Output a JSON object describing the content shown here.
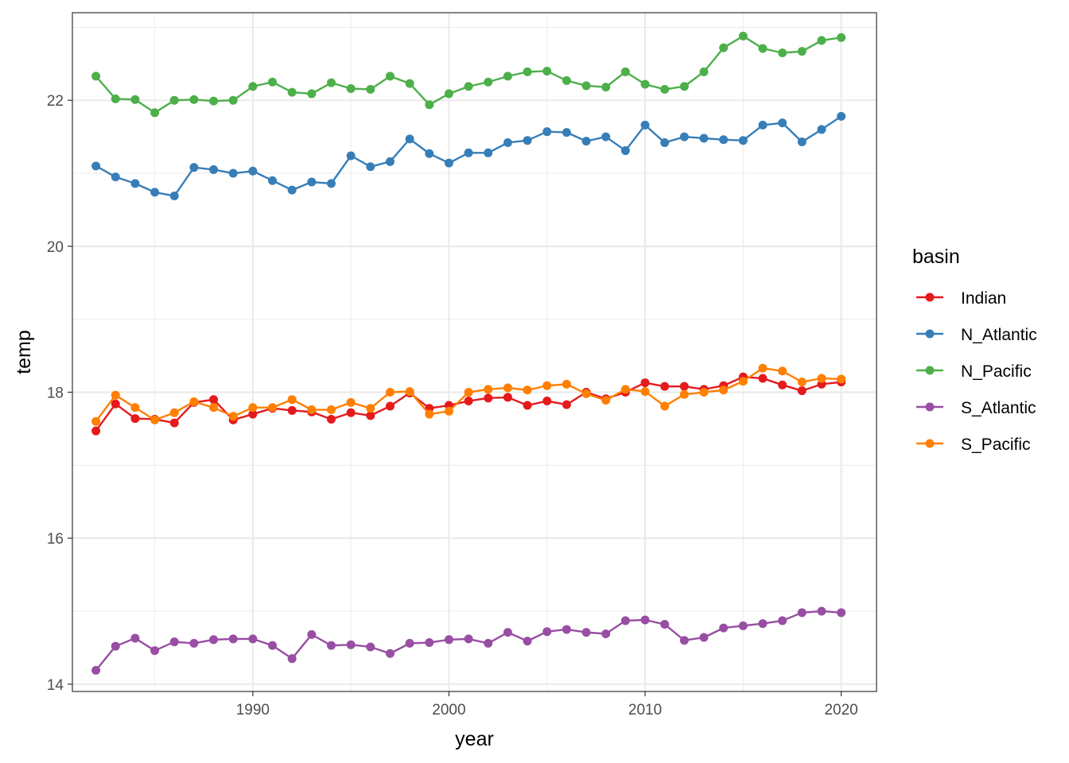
{
  "chart_data": {
    "type": "line",
    "title": "",
    "xlabel": "year",
    "ylabel": "temp",
    "xlim": [
      1980.8,
      2021.8
    ],
    "ylim": [
      13.9,
      23.2
    ],
    "x_ticks": [
      1990,
      2000,
      2010,
      2020
    ],
    "y_ticks": [
      14,
      16,
      18,
      20,
      22
    ],
    "grid": true,
    "legend_title": "basin",
    "legend_position": "right",
    "x": [
      1982,
      1983,
      1984,
      1985,
      1986,
      1987,
      1988,
      1989,
      1990,
      1991,
      1992,
      1993,
      1994,
      1995,
      1996,
      1997,
      1998,
      1999,
      2000,
      2001,
      2002,
      2003,
      2004,
      2005,
      2006,
      2007,
      2008,
      2009,
      2010,
      2011,
      2012,
      2013,
      2014,
      2015,
      2016,
      2017,
      2018,
      2019,
      2020
    ],
    "series": [
      {
        "name": "Indian",
        "color": "#e41a1c",
        "values": [
          17.47,
          17.84,
          17.64,
          17.63,
          17.58,
          17.86,
          17.9,
          17.62,
          17.7,
          17.78,
          17.75,
          17.73,
          17.63,
          17.72,
          17.68,
          17.81,
          17.99,
          17.78,
          17.82,
          17.88,
          17.92,
          17.93,
          17.82,
          17.88,
          17.83,
          18.0,
          17.91,
          18.0,
          18.13,
          18.08,
          18.08,
          18.04,
          18.09,
          18.21,
          18.19,
          18.1,
          18.02,
          18.11,
          18.14
        ]
      },
      {
        "name": "N_Atlantic",
        "color": "#377eb8",
        "values": [
          21.1,
          20.95,
          20.86,
          20.74,
          20.69,
          21.08,
          21.05,
          21.0,
          21.03,
          20.9,
          20.77,
          20.88,
          20.86,
          21.24,
          21.09,
          21.16,
          21.47,
          21.27,
          21.14,
          21.28,
          21.28,
          21.42,
          21.45,
          21.57,
          21.56,
          21.44,
          21.5,
          21.31,
          21.66,
          21.42,
          21.5,
          21.48,
          21.46,
          21.45,
          21.66,
          21.69,
          21.43,
          21.6,
          21.78
        ]
      },
      {
        "name": "N_Pacific",
        "color": "#4daf4a",
        "values": [
          22.33,
          22.02,
          22.01,
          21.83,
          22.0,
          22.01,
          21.99,
          22.0,
          22.19,
          22.25,
          22.11,
          22.09,
          22.24,
          22.16,
          22.15,
          22.33,
          22.23,
          21.94,
          22.09,
          22.19,
          22.25,
          22.33,
          22.39,
          22.4,
          22.27,
          22.2,
          22.18,
          22.39,
          22.22,
          22.15,
          22.19,
          22.39,
          22.72,
          22.88,
          22.71,
          22.65,
          22.67,
          22.82,
          22.86
        ]
      },
      {
        "name": "S_Atlantic",
        "color": "#984ea3",
        "values": [
          14.19,
          14.52,
          14.63,
          14.46,
          14.58,
          14.56,
          14.61,
          14.62,
          14.62,
          14.53,
          14.35,
          14.68,
          14.53,
          14.54,
          14.51,
          14.42,
          14.56,
          14.57,
          14.61,
          14.62,
          14.56,
          14.71,
          14.59,
          14.72,
          14.75,
          14.71,
          14.69,
          14.87,
          14.88,
          14.82,
          14.6,
          14.64,
          14.77,
          14.8,
          14.83,
          14.87,
          14.98,
          15.0,
          14.98
        ]
      },
      {
        "name": "S_Pacific",
        "color": "#ff7f00",
        "values": [
          17.6,
          17.96,
          17.79,
          17.62,
          17.72,
          17.87,
          17.79,
          17.67,
          17.79,
          17.79,
          17.9,
          17.76,
          17.76,
          17.86,
          17.78,
          18.0,
          18.01,
          17.7,
          17.74,
          18.0,
          18.04,
          18.06,
          18.03,
          18.09,
          18.11,
          17.98,
          17.89,
          18.04,
          18.01,
          17.81,
          17.97,
          18.0,
          18.03,
          18.15,
          18.33,
          18.29,
          18.14,
          18.19,
          18.18
        ]
      }
    ]
  }
}
